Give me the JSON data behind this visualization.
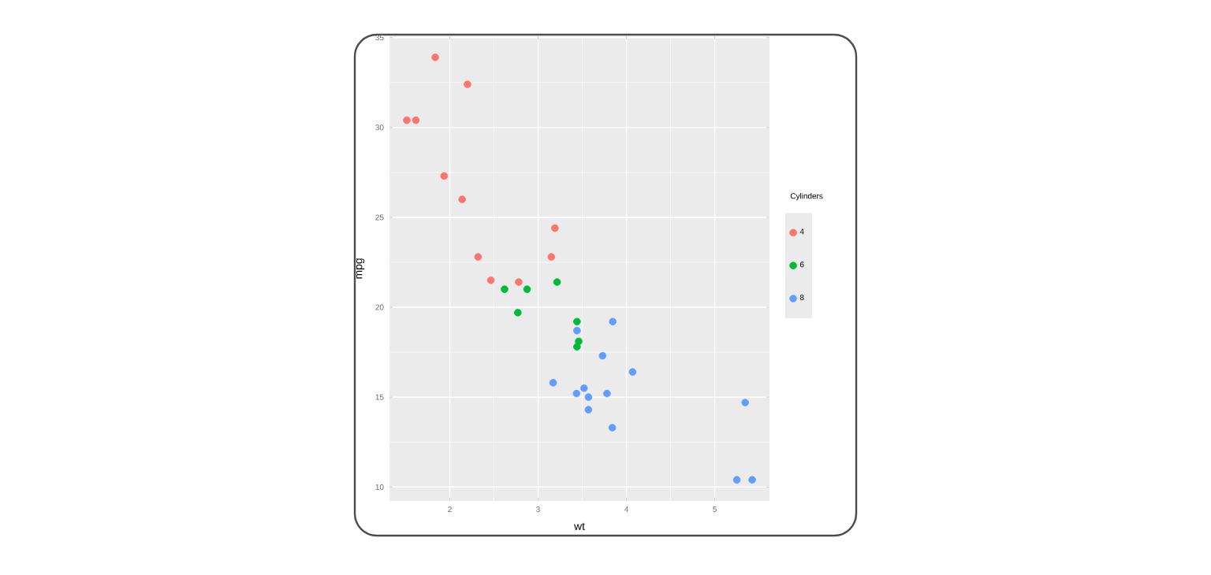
{
  "chart_data": {
    "type": "scatter",
    "xlabel": "wt",
    "ylabel": "mpg",
    "legend_title": "Cylinders",
    "xlim": [
      1.317,
      5.62
    ],
    "ylim": [
      9.225,
      35.075
    ],
    "xticks": [
      2,
      3,
      4,
      5
    ],
    "yticks": [
      10,
      15,
      20,
      25,
      30,
      35
    ],
    "grid": true,
    "legend": "right",
    "marker": "circle",
    "series": [
      {
        "name": "4",
        "color": "#f8766d",
        "x": [
          2.32,
          3.19,
          3.15,
          2.2,
          1.615,
          1.835,
          2.465,
          1.935,
          2.14,
          1.513,
          2.78
        ],
        "values": [
          22.8,
          24.4,
          22.8,
          32.4,
          30.4,
          33.9,
          21.5,
          27.3,
          26,
          30.4,
          21.4
        ]
      },
      {
        "name": "6",
        "color": "#00ba38",
        "x": [
          2.62,
          2.875,
          3.215,
          3.46,
          3.44,
          3.44,
          2.77
        ],
        "values": [
          21,
          21,
          21.4,
          18.1,
          19.2,
          17.8,
          19.7
        ]
      },
      {
        "name": "8",
        "color": "#619cff",
        "x": [
          3.44,
          3.57,
          4.07,
          3.73,
          3.78,
          5.25,
          5.424,
          5.345,
          3.52,
          3.435,
          3.84,
          3.845,
          3.17,
          3.57
        ],
        "values": [
          18.7,
          14.3,
          16.4,
          17.3,
          15.2,
          10.4,
          10.4,
          14.7,
          15.5,
          15.2,
          13.3,
          19.2,
          15.8,
          15
        ]
      }
    ]
  }
}
